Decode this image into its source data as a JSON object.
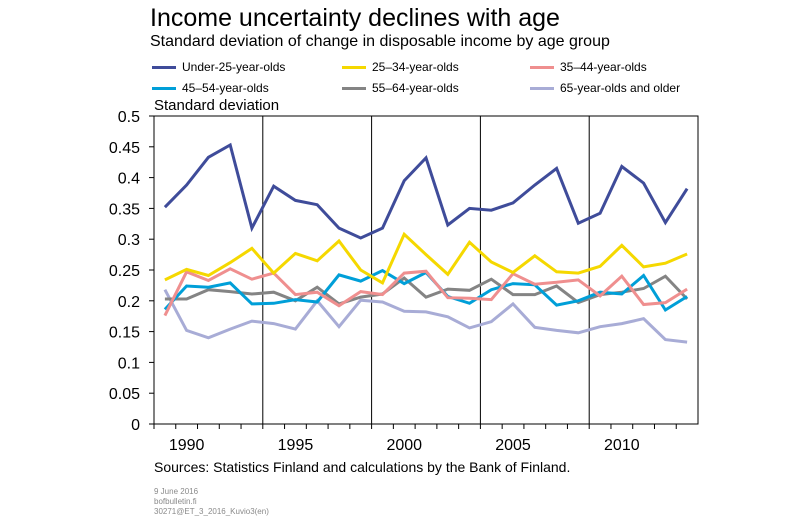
{
  "chart_data": {
    "type": "line",
    "title": "Income uncertainty declines with age",
    "subtitle": "Standard deviation of change in disposable income by age group",
    "ylabel": "Standard deviation",
    "xlabel": "",
    "xlim": [
      1989,
      2013
    ],
    "ylim": [
      0,
      0.5
    ],
    "yticks": [
      "0",
      "0.05",
      "0.1",
      "0.15",
      "0.2",
      "0.25",
      "0.3",
      "0.35",
      "0.4",
      "0.45",
      "0.5"
    ],
    "xticks": [
      "1990",
      "1995",
      "2000",
      "2005",
      "2010"
    ],
    "grid": "vertical",
    "legend_position": "top",
    "x": [
      1989,
      1990,
      1991,
      1992,
      1993,
      1994,
      1995,
      1996,
      1997,
      1998,
      1999,
      2000,
      2001,
      2002,
      2003,
      2004,
      2005,
      2006,
      2007,
      2008,
      2009,
      2010,
      2011,
      2012,
      2013
    ],
    "series": [
      {
        "name": "Under-25-year-olds",
        "color": "#3f4c9a",
        "values": [
          0.352,
          0.388,
          0.433,
          0.453,
          0.318,
          0.386,
          0.363,
          0.356,
          0.318,
          0.302,
          0.318,
          0.395,
          0.432,
          0.323,
          0.35,
          0.347,
          0.359,
          0.388,
          0.415,
          0.326,
          0.342,
          0.418,
          0.391,
          0.327,
          0.382
        ]
      },
      {
        "name": "25–34-year-olds",
        "color": "#f5d800",
        "values": [
          0.234,
          0.251,
          0.241,
          0.262,
          0.285,
          0.245,
          0.277,
          0.265,
          0.297,
          0.25,
          0.229,
          0.308,
          0.275,
          0.243,
          0.295,
          0.263,
          0.246,
          0.273,
          0.247,
          0.245,
          0.256,
          0.29,
          0.255,
          0.261,
          0.276
        ]
      },
      {
        "name": "35–44-year-olds",
        "color": "#ef8f8f",
        "values": [
          0.176,
          0.247,
          0.233,
          0.252,
          0.235,
          0.245,
          0.21,
          0.214,
          0.192,
          0.215,
          0.21,
          0.245,
          0.248,
          0.205,
          0.204,
          0.202,
          0.244,
          0.227,
          0.23,
          0.234,
          0.208,
          0.24,
          0.194,
          0.197,
          0.219
        ]
      },
      {
        "name": "45–54-year-olds",
        "color": "#009fd8",
        "values": [
          0.186,
          0.224,
          0.222,
          0.229,
          0.195,
          0.196,
          0.202,
          0.198,
          0.242,
          0.232,
          0.249,
          0.228,
          0.246,
          0.207,
          0.196,
          0.218,
          0.228,
          0.226,
          0.193,
          0.2,
          0.214,
          0.211,
          0.241,
          0.185,
          0.207
        ]
      },
      {
        "name": "55–64-year-olds",
        "color": "#848484",
        "values": [
          0.203,
          0.203,
          0.218,
          0.215,
          0.211,
          0.214,
          0.2,
          0.222,
          0.195,
          0.206,
          0.211,
          0.237,
          0.206,
          0.219,
          0.217,
          0.235,
          0.21,
          0.21,
          0.224,
          0.197,
          0.21,
          0.214,
          0.22,
          0.24,
          0.203
        ]
      },
      {
        "name": "65-year-olds and older",
        "color": "#a8acd6",
        "values": [
          0.218,
          0.152,
          0.14,
          0.154,
          0.167,
          0.163,
          0.154,
          0.2,
          0.158,
          0.201,
          0.198,
          0.183,
          0.182,
          0.174,
          0.156,
          0.166,
          0.195,
          0.157,
          0.152,
          0.148,
          0.158,
          0.163,
          0.171,
          0.137,
          0.133
        ]
      }
    ]
  },
  "source": "Sources: Statistics Finland and calculations by the Bank of Finland.",
  "meta": {
    "date": "9 June 2016",
    "site": "bofbulletin.fi",
    "code": "30271@ET_3_2016_Kuvio3(en)"
  }
}
